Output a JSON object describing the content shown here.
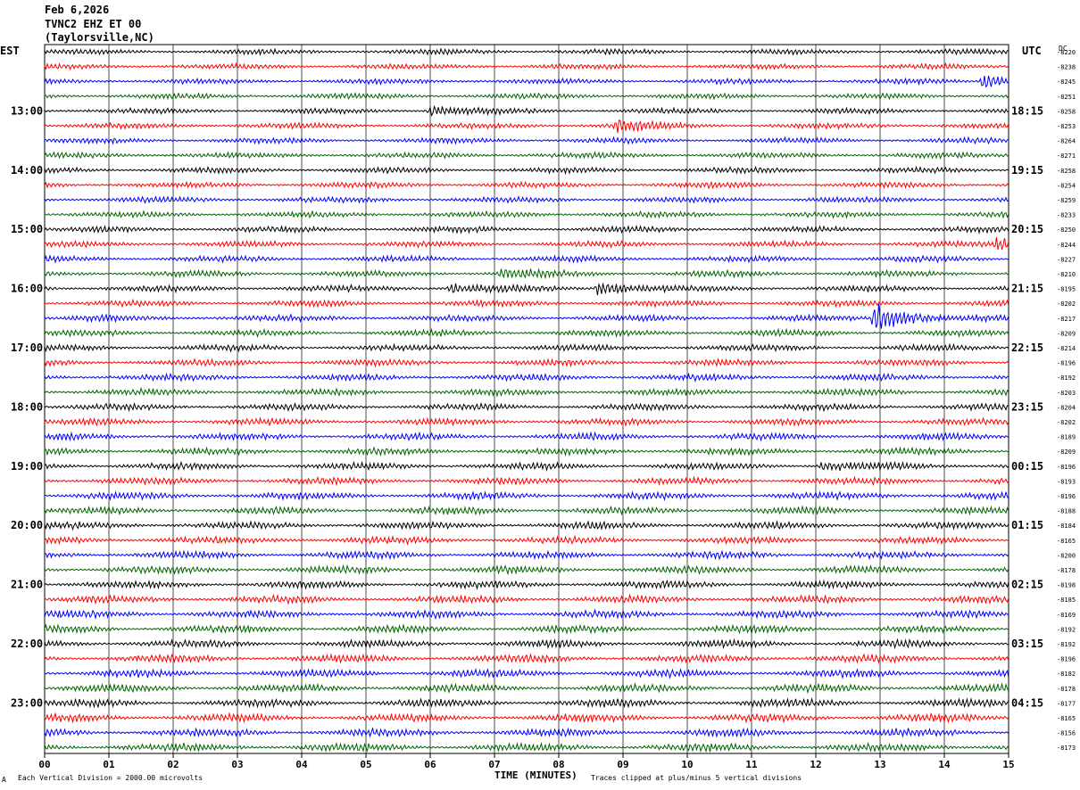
{
  "header": {
    "date": "Feb 6,2026",
    "station": "TVNC2 EHZ ET 00",
    "location": "(Taylorsville,NC)"
  },
  "left_label": "EST",
  "right_label": "UTC",
  "dc_label": "DC",
  "footer": {
    "scale": "Each Vertical Division = 2000.00 microvolts",
    "clip": "Traces clipped at plus/minus 5 vertical divisions",
    "corner_mark": "A"
  },
  "chart_data": {
    "type": "line",
    "title": "",
    "xlabel": "TIME (MINUTES)",
    "ylabel": "",
    "xlim": [
      0,
      15
    ],
    "x_ticks": [
      "00",
      "01",
      "02",
      "03",
      "04",
      "05",
      "06",
      "07",
      "08",
      "09",
      "10",
      "11",
      "12",
      "13",
      "14",
      "15"
    ],
    "trace_colors": [
      "#000000",
      "#ff0000",
      "#0000ff",
      "#006400"
    ],
    "rows_per_hour": 4,
    "est_hours": [
      "13:00",
      "14:00",
      "15:00",
      "16:00",
      "17:00",
      "18:00",
      "19:00",
      "20:00",
      "21:00",
      "22:00",
      "23:00"
    ],
    "utc_hours": [
      "18:15",
      "19:15",
      "20:15",
      "21:15",
      "22:15",
      "23:15",
      "00:15",
      "01:15",
      "02:15",
      "03:15",
      "04:15"
    ],
    "dc_offsets": [
      "-8220",
      "-8238",
      "-8245",
      "-8251",
      "-8258",
      "-8253",
      "-8264",
      "-8271",
      "-8258",
      "-8254",
      "-8259",
      "-8233",
      "-8250",
      "-8244",
      "-8227",
      "-8210",
      "-8195",
      "-8202",
      "-8217",
      "-8209",
      "-8214",
      "-8196",
      "-8192",
      "-8203",
      "-8204",
      "-8202",
      "-8189",
      "-8209",
      "-8196",
      "-8193",
      "-8196",
      "-8188",
      "-8184",
      "-8165",
      "-8200",
      "-8178",
      "-8198",
      "-8185",
      "-8169",
      "-8192",
      "-8192",
      "-8196",
      "-8182",
      "-8178",
      "-8177",
      "-8165",
      "-8156",
      "-8173"
    ],
    "events": [
      {
        "row": 2,
        "minute": 14.6,
        "strength": 2.5
      },
      {
        "row": 4,
        "minute": 6.0,
        "strength": 1.5
      },
      {
        "row": 5,
        "minute": 8.9,
        "strength": 2.0
      },
      {
        "row": 13,
        "minute": 14.8,
        "strength": 2.0
      },
      {
        "row": 15,
        "minute": 7.1,
        "strength": 1.5
      },
      {
        "row": 16,
        "minute": 6.3,
        "strength": 1.5
      },
      {
        "row": 16,
        "minute": 8.6,
        "strength": 2.5
      },
      {
        "row": 18,
        "minute": 12.9,
        "strength": 5.0
      },
      {
        "row": 28,
        "minute": 12.1,
        "strength": 1.5
      }
    ]
  }
}
